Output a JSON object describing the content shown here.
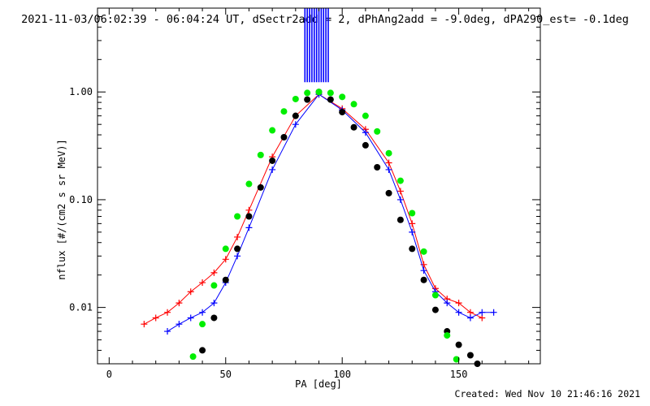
{
  "chart_data": {
    "type": "line",
    "title": "2021-11-03/06:02:39 - 06:04:24 UT, dSectr2add = 2, dPhAng2add = -9.0deg, dPA290_est= -0.1deg",
    "xlabel": "PA [deg]",
    "ylabel": "nflux [#/(cm2 s sr MeV)]",
    "xlim": [
      -5,
      185
    ],
    "ylim": [
      0.003,
      6
    ],
    "yscale": "log",
    "x_ticks": [
      0,
      50,
      100,
      150
    ],
    "x_tick_labels": [
      "0",
      "50",
      "100",
      "150"
    ],
    "y_ticks": [
      0.01,
      0.1,
      1.0
    ],
    "y_tick_labels": [
      "0.01",
      "0.10",
      "1.00"
    ],
    "grid": false,
    "series": [
      {
        "color": "#ff0000",
        "marker": "plus",
        "x": [
          15,
          20,
          25,
          30,
          35,
          40,
          45,
          50,
          55,
          60,
          70,
          80,
          90,
          100,
          110,
          120,
          125,
          130,
          135,
          140,
          145,
          150,
          155,
          160
        ],
        "values": [
          0.007,
          0.008,
          0.009,
          0.011,
          0.014,
          0.017,
          0.021,
          0.028,
          0.045,
          0.08,
          0.25,
          0.6,
          0.95,
          0.7,
          0.45,
          0.22,
          0.12,
          0.06,
          0.025,
          0.015,
          0.012,
          0.011,
          0.009,
          0.008
        ]
      },
      {
        "color": "#0000ff",
        "marker": "plus",
        "x": [
          25,
          30,
          35,
          40,
          45,
          50,
          55,
          60,
          70,
          80,
          90,
          100,
          110,
          120,
          125,
          130,
          135,
          140,
          145,
          150,
          155,
          160,
          165
        ],
        "values": [
          0.006,
          0.007,
          0.008,
          0.009,
          0.011,
          0.017,
          0.03,
          0.055,
          0.19,
          0.5,
          0.95,
          0.68,
          0.42,
          0.19,
          0.1,
          0.05,
          0.022,
          0.014,
          0.011,
          0.009,
          0.008,
          0.009,
          0.009
        ]
      },
      {
        "color": "#000000",
        "marker": "circle",
        "x": [
          40,
          45,
          50,
          55,
          60,
          65,
          70,
          75,
          80,
          85,
          90,
          95,
          100,
          105,
          110,
          115,
          120,
          125,
          130,
          135,
          140,
          145,
          150,
          155,
          158
        ],
        "values": [
          0.004,
          0.008,
          0.018,
          0.035,
          0.07,
          0.13,
          0.23,
          0.38,
          0.6,
          0.85,
          1.0,
          0.85,
          0.65,
          0.47,
          0.32,
          0.2,
          0.115,
          0.065,
          0.035,
          0.018,
          0.0095,
          0.006,
          0.0045,
          0.0036,
          0.003
        ]
      },
      {
        "color": "#00ee00",
        "marker": "circle",
        "x": [
          36,
          40,
          45,
          50,
          55,
          60,
          65,
          70,
          75,
          80,
          85,
          90,
          95,
          100,
          105,
          110,
          115,
          120,
          125,
          130,
          135,
          140,
          145,
          149
        ],
        "values": [
          0.0035,
          0.007,
          0.016,
          0.035,
          0.07,
          0.14,
          0.26,
          0.44,
          0.66,
          0.86,
          0.98,
          1.0,
          0.98,
          0.9,
          0.77,
          0.6,
          0.43,
          0.27,
          0.15,
          0.075,
          0.033,
          0.013,
          0.0055,
          0.0033
        ]
      }
    ],
    "overshoot_bars": {
      "color": "#0000ff",
      "x": [
        84,
        85,
        86,
        87,
        88,
        89,
        90,
        91,
        92,
        93,
        94
      ],
      "values": [
        6,
        6,
        6,
        6,
        6,
        6,
        6,
        6,
        6,
        6,
        6
      ]
    }
  },
  "footer": {
    "created": "Created: Wed Nov 10 21:46:16 2021"
  }
}
